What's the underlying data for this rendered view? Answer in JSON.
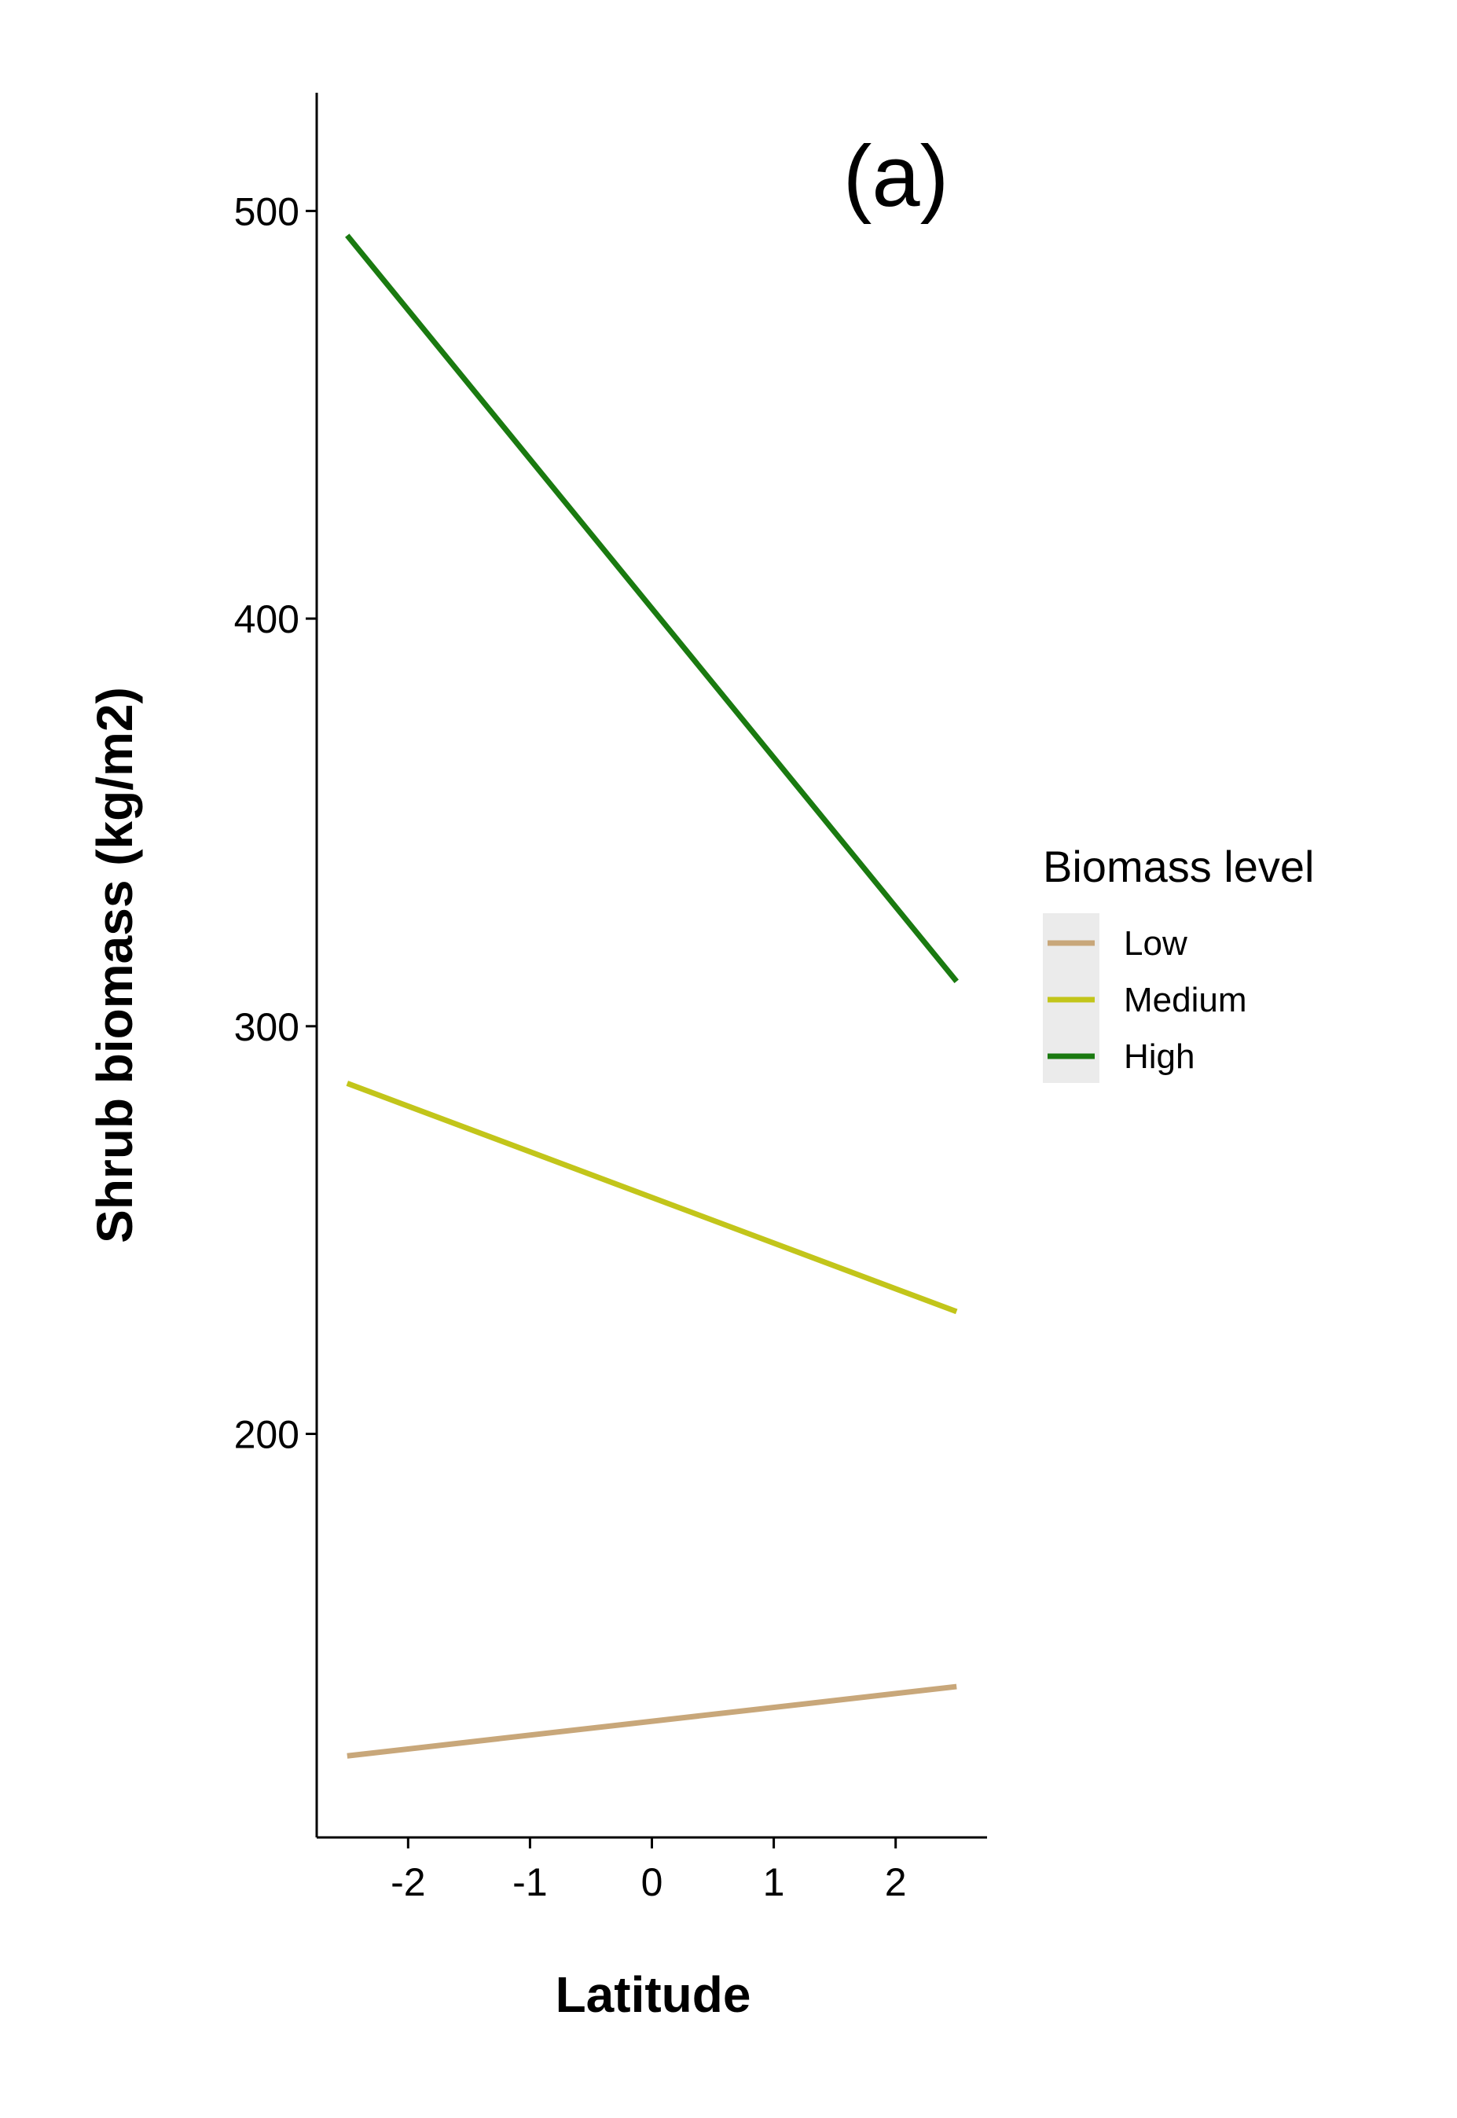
{
  "chart_data": {
    "type": "line",
    "panel_label": "(a)",
    "xlabel": "Latitude",
    "ylabel": "Shrub biomass (kg/m2)",
    "xlim": [
      -2.75,
      2.75
    ],
    "ylim": [
      101,
      529
    ],
    "x_ticks": [
      -2,
      -1,
      0,
      1,
      2
    ],
    "x_tick_labels": [
      "-2",
      "-1",
      "0",
      "1",
      "2"
    ],
    "y_ticks": [
      200,
      300,
      400,
      500
    ],
    "y_tick_labels": [
      "200",
      "300",
      "400",
      "500"
    ],
    "grid": false,
    "legend": {
      "title": "Biomass level",
      "placement": "right"
    },
    "series": [
      {
        "name": "Low",
        "color": "#c8a77a",
        "x": [
          -2.5,
          2.5
        ],
        "y": [
          121,
          138
        ]
      },
      {
        "name": "Medium",
        "color": "#c2c51a",
        "x": [
          -2.5,
          2.5
        ],
        "y": [
          286,
          230
        ]
      },
      {
        "name": "High",
        "color": "#1a7a10",
        "x": [
          -2.5,
          2.5
        ],
        "y": [
          494,
          311
        ]
      }
    ]
  }
}
